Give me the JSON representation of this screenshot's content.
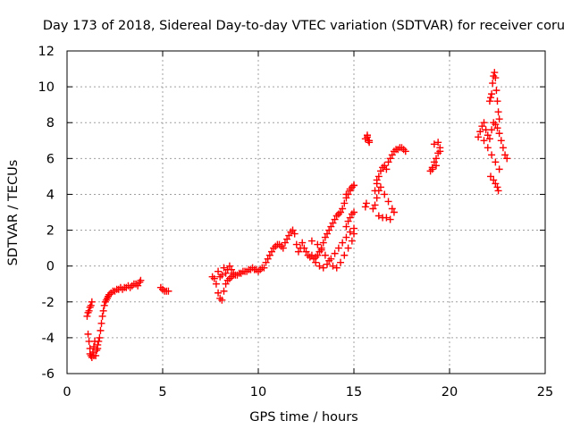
{
  "chart_data": {
    "type": "scatter",
    "title": "Day 173 of 2018, Sidereal Day-to-day VTEC variation (SDTVAR) for receiver coru",
    "xlabel": "GPS time / hours",
    "ylabel": "SDTVAR / TECUs",
    "xlim": [
      0,
      25
    ],
    "ylim": [
      -6,
      12
    ],
    "xticks": [
      "0",
      "5",
      "10",
      "15",
      "20",
      "25"
    ],
    "yticks": [
      "-6",
      "-4",
      "-2",
      "0",
      "2",
      "4",
      "6",
      "8",
      "10",
      "12"
    ],
    "grid": true,
    "marker": "+",
    "series_color": "#ff0000",
    "series": [
      {
        "name": "SDTVAR",
        "x": [
          1.05,
          1.1,
          1.15,
          1.2,
          1.25,
          1.3,
          1.1,
          1.15,
          1.2,
          1.25,
          1.3,
          1.35,
          1.4,
          1.45,
          1.5,
          1.55,
          1.6,
          1.65,
          1.7,
          1.75,
          1.8,
          1.85,
          1.9,
          1.95,
          2.0,
          2.05,
          2.1,
          2.15,
          2.2,
          2.3,
          2.4,
          2.5,
          2.6,
          2.7,
          2.8,
          2.9,
          3.0,
          3.1,
          3.2,
          3.3,
          3.4,
          3.5,
          3.6,
          3.7,
          3.8,
          3.85,
          1.2,
          1.4,
          1.6,
          4.9,
          5.0,
          5.1,
          5.2,
          5.3,
          7.6,
          7.7,
          7.8,
          7.9,
          8.0,
          8.1,
          8.2,
          8.3,
          8.4,
          8.5,
          8.6,
          8.7,
          8.8,
          8.9,
          9.0,
          9.1,
          9.2,
          9.3,
          9.4,
          9.5,
          9.6,
          9.7,
          9.8,
          9.9,
          10.0,
          10.1,
          10.2,
          10.3,
          10.4,
          10.5,
          10.6,
          10.7,
          10.8,
          10.9,
          11.0,
          11.1,
          11.2,
          11.3,
          11.4,
          11.5,
          11.6,
          11.7,
          11.8,
          11.9,
          12.0,
          12.1,
          12.2,
          12.3,
          12.4,
          12.5,
          12.6,
          12.7,
          12.8,
          12.9,
          13.0,
          13.1,
          13.2,
          13.3,
          13.4,
          13.5,
          13.6,
          13.7,
          13.8,
          13.9,
          14.0,
          14.1,
          14.2,
          14.3,
          14.4,
          14.5,
          14.6,
          14.7,
          14.8,
          14.9,
          15.0,
          13.0,
          13.2,
          13.4,
          13.6,
          13.8,
          14.0,
          14.2,
          14.4,
          14.6,
          14.8,
          15.0,
          12.8,
          13.1,
          13.3,
          13.5,
          13.7,
          13.9,
          14.1,
          14.3,
          14.5,
          14.7,
          14.9,
          15.0,
          14.6,
          14.7,
          14.8,
          14.9,
          15.0,
          14.6,
          14.8,
          15.0,
          8.3,
          8.4,
          8.5,
          8.6,
          8.7,
          8.2,
          7.9,
          8.0,
          8.1,
          15.6,
          15.65,
          15.7,
          15.75,
          15.8,
          15.6,
          15.7,
          15.8,
          16.1,
          16.2,
          16.3,
          16.4,
          16.5,
          16.6,
          16.7,
          16.8,
          16.9,
          17.0,
          17.1,
          17.2,
          17.3,
          17.4,
          17.5,
          17.6,
          17.7,
          16.2,
          16.4,
          16.6,
          16.8,
          17.0,
          17.1,
          16.3,
          16.5,
          16.7,
          16.9,
          16.0,
          16.1,
          16.2,
          16.3,
          19.0,
          19.1,
          19.2,
          19.3,
          19.4,
          19.5,
          19.1,
          19.3,
          19.5,
          19.2,
          19.4,
          21.5,
          21.6,
          21.7,
          21.8,
          21.9,
          22.0,
          22.1,
          22.2,
          22.3,
          22.4,
          22.5,
          22.6,
          22.7,
          22.8,
          22.9,
          23.0,
          21.8,
          22.0,
          22.2,
          22.4,
          22.6,
          22.1,
          22.15,
          22.2,
          22.25,
          22.3,
          22.35,
          22.4,
          22.45,
          22.5,
          22.55,
          22.6,
          22.15,
          22.3,
          22.4,
          22.5,
          22.55
        ],
        "y": [
          -2.8,
          -2.6,
          -2.5,
          -2.3,
          -2.2,
          -2.0,
          -3.8,
          -4.2,
          -4.6,
          -5.0,
          -5.1,
          -4.8,
          -4.5,
          -4.2,
          -5.0,
          -4.7,
          -4.4,
          -4.2,
          -4.0,
          -3.6,
          -3.2,
          -2.8,
          -2.5,
          -2.2,
          -2.0,
          -1.9,
          -1.8,
          -1.7,
          -1.6,
          -1.5,
          -1.4,
          -1.4,
          -1.3,
          -1.3,
          -1.2,
          -1.3,
          -1.2,
          -1.2,
          -1.1,
          -1.2,
          -1.1,
          -1.0,
          -1.0,
          -1.1,
          -0.9,
          -0.8,
          -4.9,
          -5.0,
          -4.6,
          -1.2,
          -1.3,
          -1.4,
          -1.4,
          -1.4,
          -0.6,
          -0.7,
          -1.0,
          -1.5,
          -1.8,
          -1.9,
          -1.4,
          -1.0,
          -0.8,
          -0.7,
          -0.6,
          -0.5,
          -0.5,
          -0.5,
          -0.4,
          -0.4,
          -0.3,
          -0.3,
          -0.3,
          -0.2,
          -0.2,
          -0.1,
          -0.2,
          -0.2,
          -0.3,
          -0.2,
          -0.1,
          -0.1,
          0.2,
          0.4,
          0.6,
          0.8,
          1.0,
          1.1,
          1.2,
          1.2,
          1.1,
          1.0,
          1.3,
          1.5,
          1.7,
          1.9,
          2.0,
          1.8,
          1.2,
          0.8,
          1.0,
          1.3,
          1.0,
          0.8,
          0.6,
          0.5,
          0.6,
          0.4,
          0.5,
          0.6,
          0.8,
          1.0,
          1.3,
          1.6,
          1.8,
          2.0,
          2.2,
          2.4,
          2.6,
          2.8,
          2.9,
          3.0,
          3.2,
          3.5,
          3.8,
          4.0,
          4.2,
          4.4,
          4.5,
          0.2,
          0.0,
          -0.1,
          0.1,
          0.4,
          0.7,
          1.0,
          1.3,
          1.6,
          1.9,
          2.1,
          1.4,
          1.2,
          0.9,
          0.6,
          0.3,
          0.0,
          -0.1,
          0.2,
          0.6,
          1.0,
          1.4,
          1.8,
          2.2,
          2.5,
          2.7,
          2.9,
          3.0,
          4.0,
          4.3,
          4.5,
          -0.4,
          -0.2,
          0.0,
          -0.2,
          -0.4,
          -0.1,
          -0.3,
          -0.6,
          -0.5,
          3.3,
          3.5,
          7.3,
          7.0,
          6.9,
          7.1,
          7.2,
          7.0,
          4.2,
          4.6,
          5.0,
          5.3,
          5.5,
          5.6,
          5.4,
          5.8,
          6.0,
          6.2,
          6.4,
          6.5,
          6.5,
          6.6,
          6.6,
          6.5,
          6.4,
          4.8,
          4.4,
          4.0,
          3.6,
          3.2,
          3.0,
          2.8,
          2.7,
          2.7,
          2.6,
          3.2,
          3.4,
          3.8,
          4.2,
          5.3,
          5.5,
          5.8,
          6.0,
          6.3,
          6.6,
          5.4,
          5.6,
          6.4,
          6.8,
          6.9,
          7.2,
          7.5,
          7.8,
          8.0,
          7.6,
          7.3,
          7.1,
          7.6,
          8.0,
          7.9,
          7.7,
          7.4,
          7.0,
          6.6,
          6.2,
          6.0,
          7.0,
          6.6,
          6.2,
          5.8,
          5.4,
          9.2,
          9.4,
          9.6,
          10.2,
          10.6,
          10.8,
          10.5,
          9.8,
          9.2,
          8.6,
          8.2,
          5.0,
          4.8,
          4.6,
          4.4,
          4.2
        ]
      }
    ]
  }
}
